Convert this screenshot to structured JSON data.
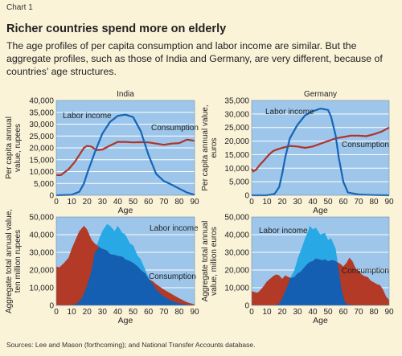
{
  "header": {
    "chart_number": "Chart 1",
    "title": "Richer countries spend more on elderly",
    "subtitle": "The age profiles of per capita consumption and labor income are similar. But the aggregate profiles, such as those of India and Germany, are very different, because of countries’ age structures."
  },
  "source": "Sources: Lee and Mason (forthcoming); and National Transfer Accounts database.",
  "colors": {
    "background": "#fbf3d8",
    "plot_background": "#9dc6ea",
    "gridline": "#ffffff",
    "labor_line": "#1565b8",
    "consumption_line": "#b03428",
    "labor_area_light": "#29a8e6",
    "labor_area_dark": "#145fb2",
    "consumption_area": "#b23a26"
  },
  "chart_data": [
    {
      "id": "india-per-capita",
      "type": "line",
      "title": "India",
      "xlabel": "Age",
      "ylabel": "Per capita annual value, rupees",
      "xlim": [
        0,
        90
      ],
      "ylim": [
        0,
        40000
      ],
      "xticks": [
        0,
        10,
        20,
        30,
        40,
        50,
        60,
        70,
        80,
        90
      ],
      "yticks": [
        0,
        5000,
        10000,
        15000,
        20000,
        25000,
        30000,
        35000,
        40000
      ],
      "ytick_labels": [
        "0",
        "5,000",
        "10,000",
        "15,000",
        "20,000",
        "25,000",
        "30,000",
        "35,000",
        "40,000"
      ],
      "grid": true,
      "annotations": [
        "Labor income",
        "Consumption"
      ],
      "series": [
        {
          "name": "Labor income",
          "x": [
            0,
            10,
            15,
            18,
            20,
            25,
            30,
            35,
            40,
            45,
            50,
            55,
            60,
            65,
            70,
            75,
            80,
            85,
            90
          ],
          "values": [
            0,
            200,
            1500,
            5000,
            9000,
            18000,
            26000,
            31000,
            33500,
            34000,
            33000,
            27000,
            17000,
            9000,
            6000,
            4500,
            2800,
            1200,
            200
          ]
        },
        {
          "name": "Consumption",
          "x": [
            0,
            3,
            8,
            12,
            15,
            18,
            20,
            23,
            26,
            30,
            35,
            40,
            45,
            50,
            55,
            60,
            65,
            70,
            75,
            80,
            85,
            90
          ],
          "values": [
            8500,
            8500,
            11000,
            14000,
            17000,
            20000,
            20800,
            20500,
            19000,
            19300,
            21000,
            22500,
            22500,
            22300,
            22400,
            22300,
            21800,
            21300,
            21800,
            22000,
            23500,
            23000
          ]
        }
      ]
    },
    {
      "id": "germany-per-capita",
      "type": "line",
      "title": "Germany",
      "xlabel": "Age",
      "ylabel": "Per capita annual value, euros",
      "xlim": [
        0,
        90
      ],
      "ylim": [
        0,
        35000
      ],
      "xticks": [
        0,
        10,
        20,
        30,
        40,
        50,
        60,
        70,
        80,
        90
      ],
      "yticks": [
        0,
        5000,
        10000,
        15000,
        20000,
        25000,
        30000,
        35000
      ],
      "ytick_labels": [
        "0",
        "5,000",
        "10,000",
        "15,000",
        "20,000",
        "25,000",
        "30,000",
        "35,000"
      ],
      "grid": true,
      "annotations": [
        "Labor income",
        "Consumption"
      ],
      "series": [
        {
          "name": "Labor income",
          "x": [
            0,
            10,
            15,
            18,
            20,
            22,
            25,
            30,
            35,
            40,
            45,
            50,
            52,
            55,
            57,
            60,
            63,
            70,
            80,
            90
          ],
          "values": [
            0,
            0,
            500,
            3000,
            8000,
            14000,
            21000,
            26000,
            29500,
            31000,
            32000,
            31500,
            29000,
            22000,
            14000,
            5000,
            1000,
            300,
            100,
            0
          ]
        },
        {
          "name": "Consumption",
          "x": [
            0,
            1,
            3,
            5,
            8,
            11,
            14,
            17,
            20,
            25,
            30,
            35,
            40,
            45,
            50,
            55,
            60,
            65,
            70,
            75,
            80,
            85,
            90
          ],
          "values": [
            9800,
            8800,
            9500,
            11000,
            12800,
            14800,
            16300,
            17000,
            17500,
            18200,
            18000,
            17500,
            18000,
            19000,
            20000,
            21000,
            21500,
            22000,
            22000,
            21800,
            22500,
            23500,
            25000
          ]
        }
      ]
    },
    {
      "id": "india-aggregate",
      "type": "area",
      "xlabel": "Age",
      "ylabel": "Aggregate total annual value, ten million rupees",
      "xlim": [
        0,
        90
      ],
      "ylim": [
        0,
        50000
      ],
      "xticks": [
        0,
        10,
        20,
        30,
        40,
        50,
        60,
        70,
        80,
        90
      ],
      "yticks": [
        0,
        10000,
        20000,
        30000,
        40000,
        50000
      ],
      "ytick_labels": [
        "0",
        "10,000",
        "20,000",
        "30,000",
        "40,000",
        "50,000"
      ],
      "grid": true,
      "annotations": [
        "Labor income",
        "Consumption"
      ],
      "series": [
        {
          "name": "Labor income",
          "x": [
            0,
            10,
            14,
            17,
            20,
            23,
            25,
            28,
            30,
            33,
            35,
            38,
            40,
            43,
            45,
            48,
            50,
            53,
            55,
            58,
            60,
            63,
            65,
            70,
            75,
            80,
            85,
            90
          ],
          "values": [
            0,
            0,
            1500,
            4500,
            11000,
            20000,
            30000,
            38000,
            42000,
            46000,
            45000,
            42000,
            45000,
            41000,
            40000,
            35000,
            34000,
            28000,
            26000,
            20000,
            16000,
            12000,
            9000,
            5000,
            2500,
            1200,
            400,
            0
          ]
        },
        {
          "name": "Consumption",
          "x": [
            0,
            2,
            5,
            8,
            10,
            13,
            15,
            18,
            20,
            23,
            25,
            28,
            30,
            33,
            35,
            38,
            40,
            43,
            45,
            48,
            50,
            53,
            55,
            58,
            60,
            63,
            65,
            70,
            75,
            80,
            85,
            90
          ],
          "values": [
            22000,
            21500,
            24000,
            27000,
            32000,
            38000,
            42000,
            45000,
            43000,
            37000,
            35000,
            33000,
            32000,
            31000,
            29000,
            28500,
            28000,
            27500,
            26000,
            25000,
            24000,
            22000,
            20000,
            18000,
            15000,
            13500,
            12000,
            9000,
            6500,
            4000,
            1800,
            500
          ]
        }
      ]
    },
    {
      "id": "germany-aggregate",
      "type": "area",
      "xlabel": "Age",
      "ylabel": "Aggregate total annual value, million euros",
      "xlim": [
        0,
        90
      ],
      "ylim": [
        0,
        50000
      ],
      "xticks": [
        0,
        10,
        20,
        30,
        40,
        50,
        60,
        70,
        80,
        90
      ],
      "yticks": [
        0,
        10000,
        20000,
        30000,
        40000,
        50000
      ],
      "ytick_labels": [
        "0",
        "10,000",
        "20,000",
        "30,000",
        "40,000",
        "50,000"
      ],
      "grid": true,
      "annotations": [
        "Labor income",
        "Consumption"
      ],
      "series": [
        {
          "name": "Labor income",
          "x": [
            0,
            15,
            18,
            20,
            23,
            25,
            28,
            30,
            33,
            35,
            37,
            38,
            40,
            42,
            45,
            48,
            50,
            52,
            55,
            57,
            59,
            61,
            63,
            70,
            90
          ],
          "values": [
            0,
            0,
            1000,
            4000,
            10000,
            15000,
            20000,
            26000,
            33000,
            38000,
            42000,
            45000,
            43000,
            44000,
            40000,
            41000,
            37000,
            38000,
            32000,
            20000,
            8000,
            2000,
            500,
            0,
            0
          ]
        },
        {
          "name": "Consumption",
          "x": [
            0,
            2,
            4,
            6,
            8,
            10,
            12,
            14,
            16,
            18,
            20,
            22,
            24,
            26,
            28,
            30,
            32,
            34,
            36,
            38,
            40,
            42,
            44,
            46,
            48,
            50,
            52,
            54,
            56,
            58,
            60,
            62,
            64,
            66,
            68,
            70,
            72,
            74,
            76,
            78,
            80,
            82,
            84,
            86,
            88,
            90
          ],
          "values": [
            8000,
            7500,
            7200,
            9000,
            11000,
            13500,
            15000,
            16500,
            17500,
            17000,
            15000,
            17000,
            16000,
            15500,
            16000,
            18000,
            19000,
            21000,
            23000,
            24500,
            25000,
            26500,
            26000,
            25500,
            26000,
            25000,
            25500,
            25500,
            24500,
            23500,
            22000,
            24000,
            27000,
            25000,
            21000,
            19500,
            17500,
            16500,
            16000,
            14000,
            13000,
            12000,
            11500,
            9000,
            5000,
            3000
          ]
        }
      ]
    }
  ]
}
